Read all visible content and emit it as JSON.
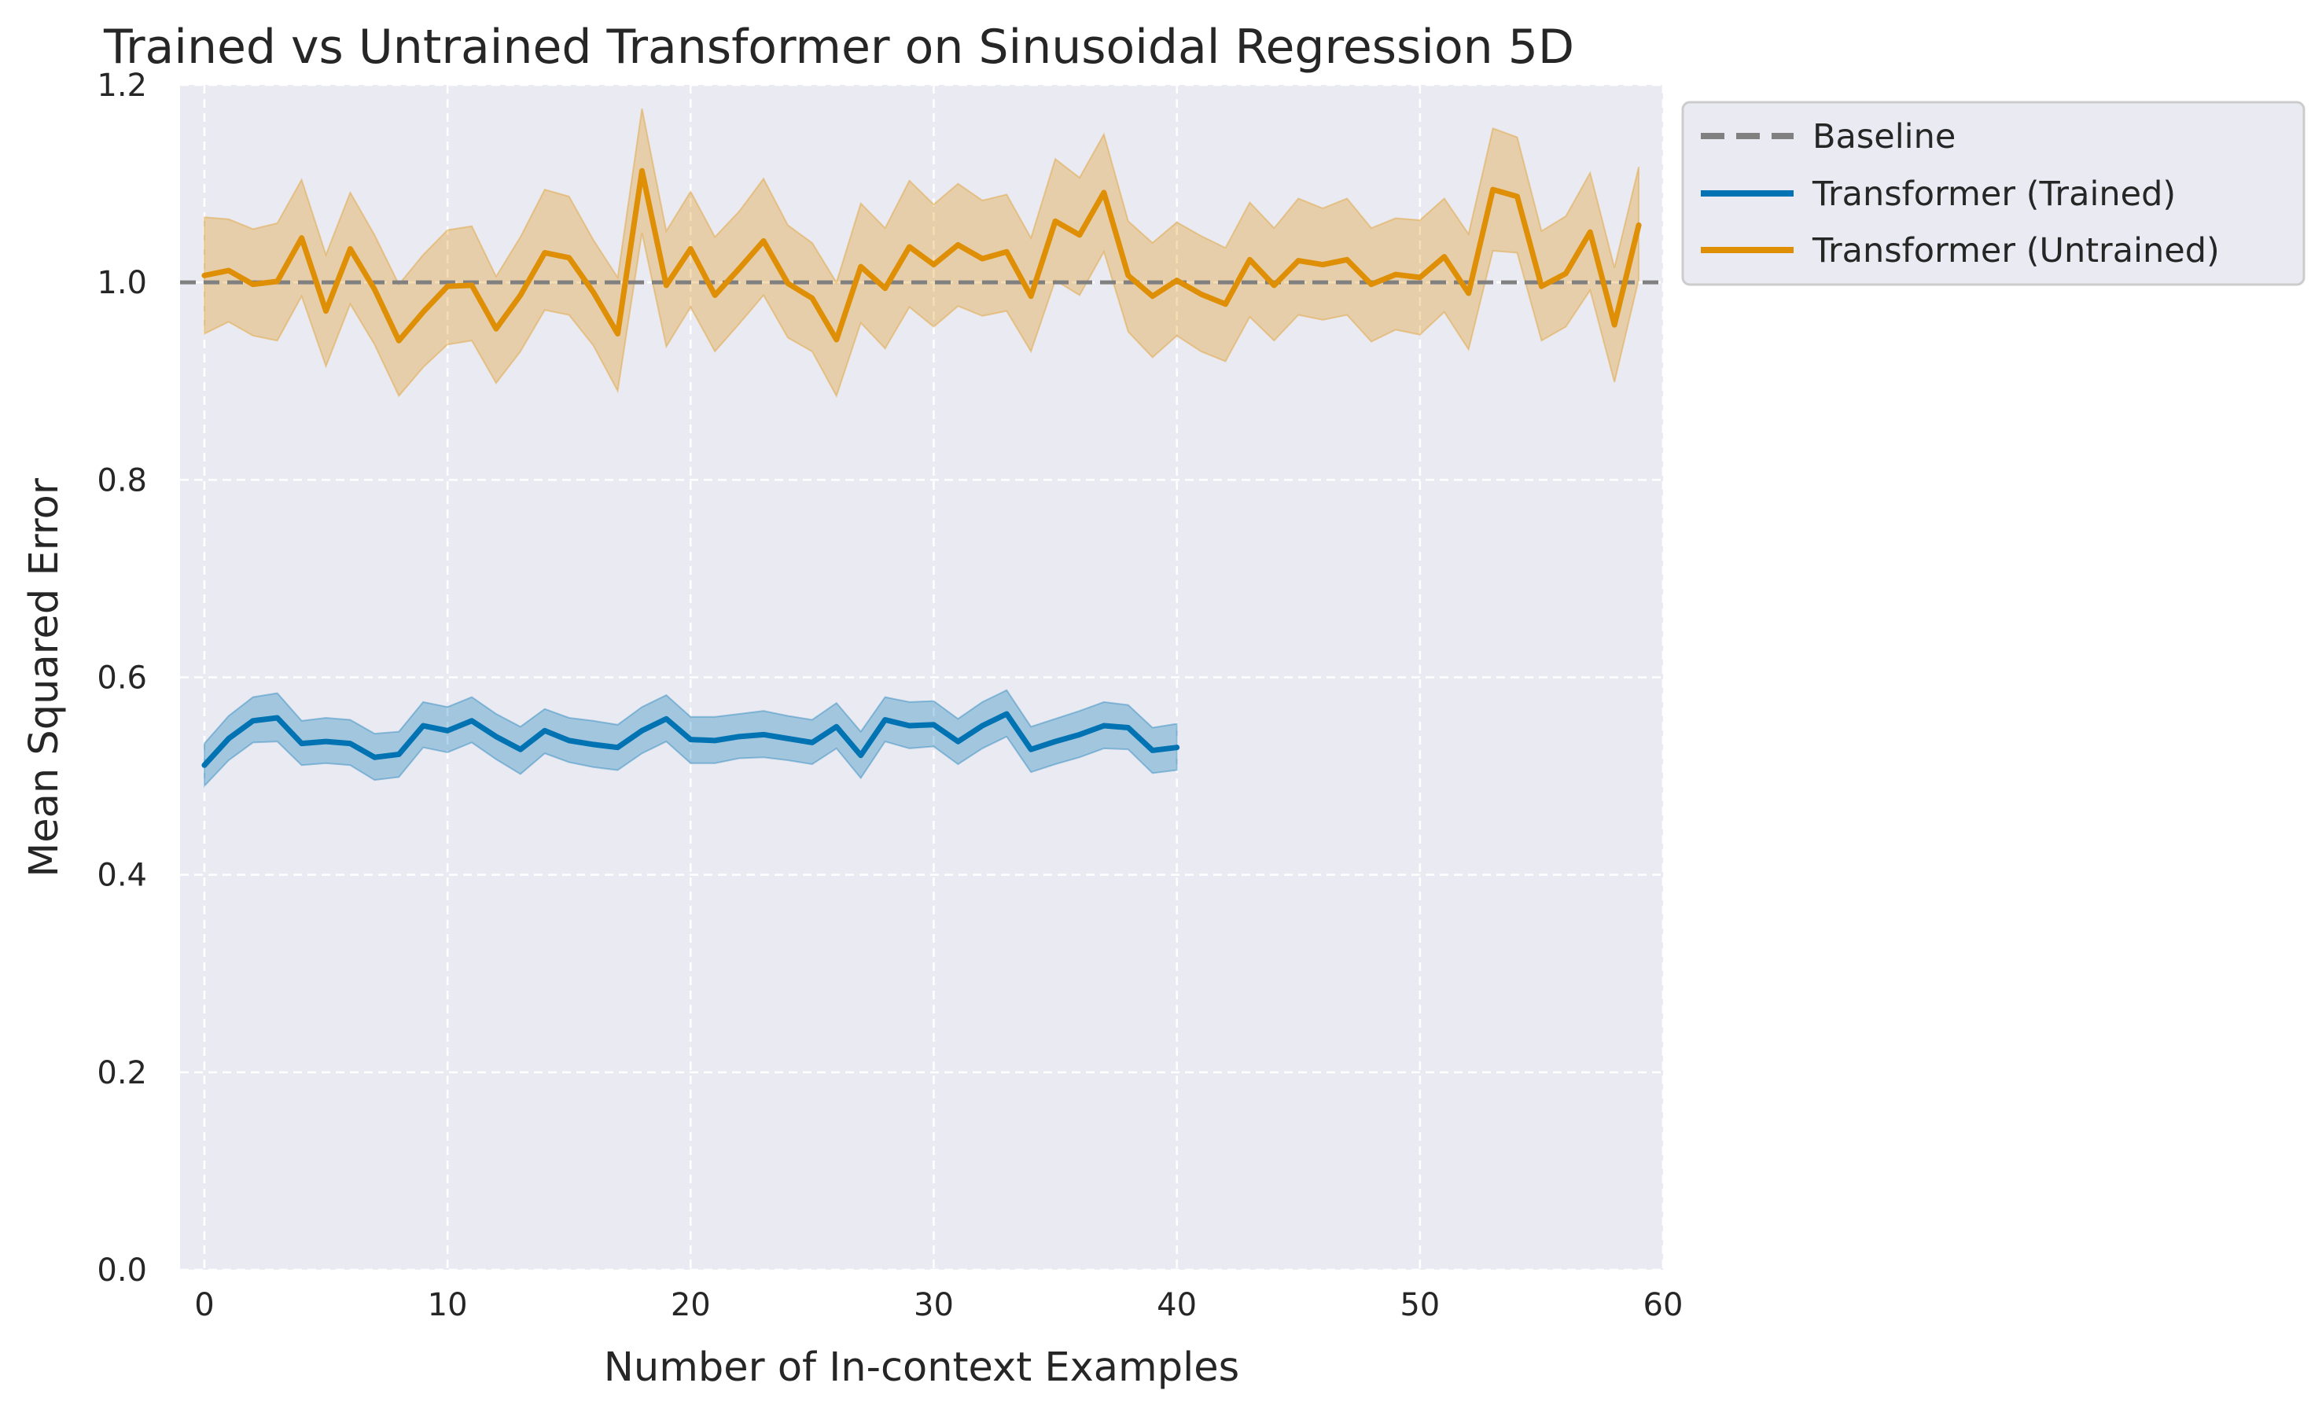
{
  "chart_data": {
    "type": "line",
    "title": "Trained vs Untrained Transformer on Sinusoidal Regression 5D",
    "xlabel": "Number of In-context Examples",
    "ylabel": "Mean Squared Error",
    "xlim": [
      -1,
      60
    ],
    "ylim": [
      0.0,
      1.2
    ],
    "xticks": [
      "0",
      "10",
      "20",
      "30",
      "40",
      "50",
      "60"
    ],
    "yticks": [
      "0.0",
      "0.2",
      "0.4",
      "0.6",
      "0.8",
      "1.0",
      "1.2"
    ],
    "grid": true,
    "legend_position": "outside top-right",
    "baseline": {
      "name": "Baseline",
      "y": 1.0,
      "color": "#808080",
      "style": "dashed"
    },
    "series": [
      {
        "name": "Transformer (Trained)",
        "color": "#0173b2",
        "x": [
          0,
          1,
          2,
          3,
          4,
          5,
          6,
          7,
          8,
          9,
          10,
          11,
          12,
          13,
          14,
          15,
          16,
          17,
          18,
          19,
          20,
          21,
          22,
          23,
          24,
          25,
          26,
          27,
          28,
          29,
          30,
          31,
          32,
          33,
          34,
          35,
          36,
          37,
          38,
          39,
          40
        ],
        "values": [
          0.511,
          0.538,
          0.556,
          0.559,
          0.533,
          0.535,
          0.533,
          0.519,
          0.522,
          0.551,
          0.546,
          0.556,
          0.54,
          0.527,
          0.546,
          0.536,
          0.532,
          0.529,
          0.546,
          0.558,
          0.537,
          0.536,
          0.54,
          0.542,
          0.538,
          0.534,
          0.55,
          0.521,
          0.557,
          0.551,
          0.552,
          0.535,
          0.551,
          0.563,
          0.527,
          0.535,
          0.542,
          0.551,
          0.549,
          0.526,
          0.529
        ],
        "lower": [
          0.49,
          0.516,
          0.534,
          0.535,
          0.511,
          0.513,
          0.511,
          0.496,
          0.499,
          0.529,
          0.524,
          0.534,
          0.517,
          0.502,
          0.523,
          0.514,
          0.509,
          0.506,
          0.523,
          0.535,
          0.513,
          0.513,
          0.518,
          0.519,
          0.516,
          0.512,
          0.528,
          0.498,
          0.535,
          0.528,
          0.53,
          0.512,
          0.528,
          0.54,
          0.504,
          0.512,
          0.519,
          0.528,
          0.527,
          0.503,
          0.506
        ],
        "upper": [
          0.533,
          0.561,
          0.58,
          0.584,
          0.556,
          0.559,
          0.557,
          0.543,
          0.545,
          0.575,
          0.57,
          0.58,
          0.563,
          0.55,
          0.568,
          0.559,
          0.556,
          0.552,
          0.57,
          0.582,
          0.56,
          0.56,
          0.563,
          0.566,
          0.561,
          0.557,
          0.574,
          0.545,
          0.58,
          0.575,
          0.576,
          0.558,
          0.575,
          0.587,
          0.55,
          0.558,
          0.566,
          0.575,
          0.572,
          0.549,
          0.553
        ]
      },
      {
        "name": "Transformer (Untrained)",
        "color": "#de8f05",
        "x": [
          0,
          1,
          2,
          3,
          4,
          5,
          6,
          7,
          8,
          9,
          10,
          11,
          12,
          13,
          14,
          15,
          16,
          17,
          18,
          19,
          20,
          21,
          22,
          23,
          24,
          25,
          26,
          27,
          28,
          29,
          30,
          31,
          32,
          33,
          34,
          35,
          36,
          37,
          38,
          39,
          40,
          41,
          42,
          43,
          44,
          45,
          46,
          47,
          48,
          49,
          50,
          51,
          52,
          53,
          54,
          55,
          56,
          57,
          58,
          59
        ],
        "values": [
          1.007,
          1.012,
          0.998,
          1.001,
          1.045,
          0.971,
          1.034,
          0.993,
          0.941,
          0.97,
          0.996,
          0.997,
          0.953,
          0.987,
          1.03,
          1.025,
          0.99,
          0.948,
          1.113,
          0.997,
          1.034,
          0.987,
          1.014,
          1.042,
          0.999,
          0.984,
          0.942,
          1.016,
          0.994,
          1.036,
          1.018,
          1.038,
          1.024,
          1.031,
          0.986,
          1.062,
          1.048,
          1.091,
          1.007,
          0.986,
          1.002,
          0.988,
          0.978,
          1.023,
          0.997,
          1.022,
          1.018,
          1.023,
          0.998,
          1.008,
          1.005,
          1.026,
          0.989,
          1.094,
          1.087,
          0.996,
          1.009,
          1.051,
          0.957,
          1.058
        ],
        "lower": [
          0.948,
          0.96,
          0.946,
          0.941,
          0.986,
          0.915,
          0.978,
          0.937,
          0.885,
          0.914,
          0.937,
          0.941,
          0.898,
          0.93,
          0.972,
          0.967,
          0.936,
          0.89,
          1.05,
          0.935,
          0.975,
          0.93,
          0.958,
          0.987,
          0.944,
          0.93,
          0.885,
          0.959,
          0.933,
          0.975,
          0.955,
          0.976,
          0.966,
          0.971,
          0.93,
          1.002,
          0.987,
          1.031,
          0.95,
          0.924,
          0.946,
          0.93,
          0.92,
          0.965,
          0.941,
          0.967,
          0.962,
          0.967,
          0.94,
          0.952,
          0.947,
          0.97,
          0.932,
          1.032,
          1.03,
          0.941,
          0.955,
          0.992,
          0.899,
          1.003
        ],
        "upper": [
          1.066,
          1.064,
          1.054,
          1.06,
          1.104,
          1.028,
          1.091,
          1.048,
          0.998,
          1.028,
          1.053,
          1.057,
          1.006,
          1.046,
          1.094,
          1.087,
          1.043,
          1.005,
          1.176,
          1.052,
          1.092,
          1.046,
          1.072,
          1.105,
          1.058,
          1.04,
          1.0,
          1.08,
          1.055,
          1.103,
          1.079,
          1.1,
          1.083,
          1.089,
          1.045,
          1.125,
          1.106,
          1.15,
          1.062,
          1.04,
          1.061,
          1.047,
          1.035,
          1.081,
          1.055,
          1.085,
          1.075,
          1.085,
          1.055,
          1.065,
          1.063,
          1.085,
          1.049,
          1.156,
          1.147,
          1.052,
          1.067,
          1.111,
          1.015,
          1.117
        ]
      }
    ]
  }
}
